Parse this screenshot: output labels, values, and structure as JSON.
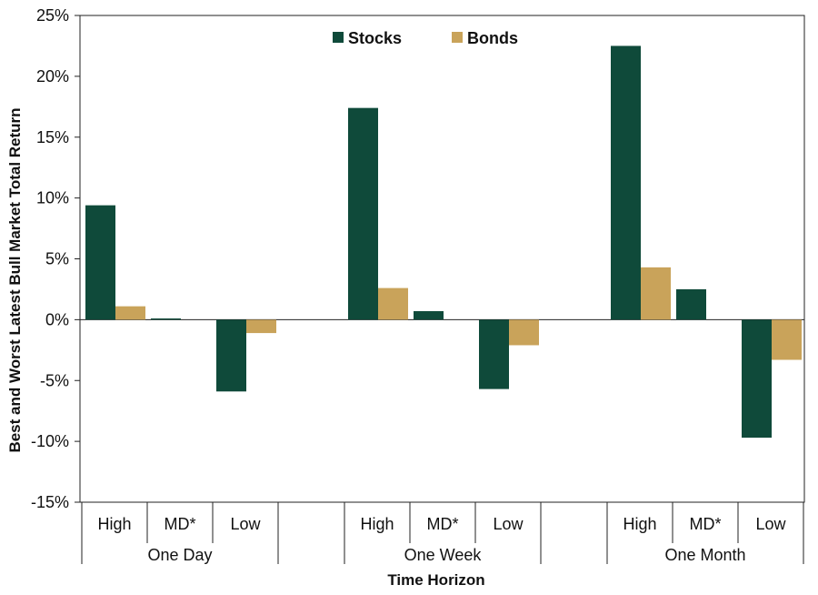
{
  "chart_data": {
    "type": "bar",
    "title": "",
    "xlabel": "Time Horizon",
    "ylabel": "Best and Worst Latest Bull Market Total Return",
    "ylim": [
      -15,
      25
    ],
    "yticks": [
      "25%",
      "20%",
      "15%",
      "10%",
      "5%",
      "0%",
      "-5%",
      "-10%",
      "-15%"
    ],
    "groups": [
      "One Day",
      "One Week",
      "One Month"
    ],
    "categories": [
      "High",
      "MD*",
      "Low",
      "High",
      "MD*",
      "Low",
      "High",
      "MD*",
      "Low"
    ],
    "series": [
      {
        "name": "Stocks",
        "color": "#0f4a3a",
        "values": [
          9.4,
          0.1,
          -5.9,
          17.4,
          0.7,
          -5.7,
          22.5,
          2.5,
          -9.7
        ]
      },
      {
        "name": "Bonds",
        "color": "#c9a35a",
        "values": [
          1.1,
          0,
          -1.1,
          2.6,
          0,
          -2.1,
          4.3,
          0,
          -3.3
        ]
      }
    ],
    "legend": "top-center",
    "grid": false
  }
}
